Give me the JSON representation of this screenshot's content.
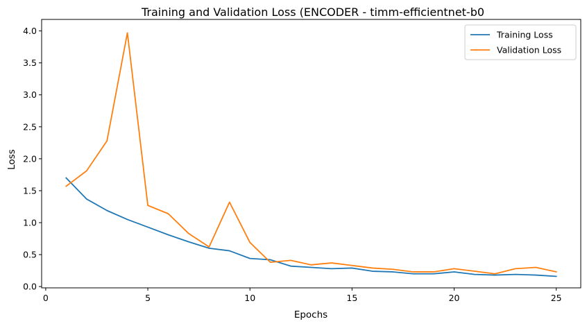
{
  "chart_data": {
    "type": "line",
    "title": "Training and Validation Loss (ENCODER - timm-efficientnet-b0",
    "xlabel": "Epochs",
    "ylabel": "Loss",
    "xlim": [
      -0.2,
      26.2
    ],
    "ylim": [
      -0.02,
      4.18
    ],
    "x_ticks": [
      0,
      5,
      10,
      15,
      20,
      25
    ],
    "y_ticks": [
      0.0,
      0.5,
      1.0,
      1.5,
      2.0,
      2.5,
      3.0,
      3.5,
      4.0
    ],
    "grid": false,
    "legend_position": "top-right",
    "x": [
      1,
      2,
      3,
      4,
      5,
      6,
      7,
      8,
      9,
      10,
      11,
      12,
      13,
      14,
      15,
      16,
      17,
      18,
      19,
      20,
      21,
      22,
      23,
      24,
      25
    ],
    "series": [
      {
        "name": "Training Loss",
        "color": "#1f77b4",
        "values": [
          1.7,
          1.37,
          1.19,
          1.05,
          0.93,
          0.81,
          0.7,
          0.6,
          0.56,
          0.44,
          0.42,
          0.32,
          0.3,
          0.28,
          0.29,
          0.24,
          0.23,
          0.2,
          0.2,
          0.23,
          0.19,
          0.18,
          0.19,
          0.18,
          0.16
        ]
      },
      {
        "name": "Validation Loss",
        "color": "#ff7f0e",
        "values": [
          1.57,
          1.81,
          2.28,
          3.97,
          1.27,
          1.14,
          0.83,
          0.62,
          1.32,
          0.69,
          0.38,
          0.41,
          0.34,
          0.37,
          0.33,
          0.29,
          0.27,
          0.23,
          0.23,
          0.28,
          0.24,
          0.2,
          0.28,
          0.3,
          0.23
        ]
      }
    ]
  }
}
